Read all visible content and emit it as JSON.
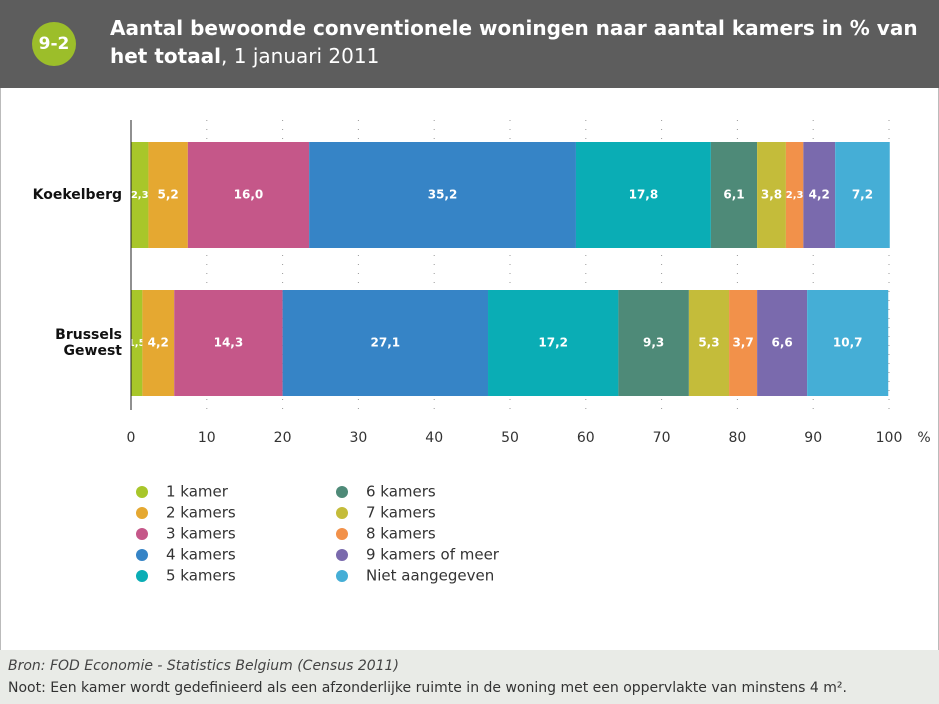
{
  "figure_number": "9-2",
  "chart_data": {
    "type": "stacked-barh",
    "title": "Aantal bewoonde conventionele woningen naar aantal kamers in % van het totaal",
    "subtitle": ", 1 januari 2011",
    "categories": [
      "Koekelberg",
      "Brussels Gewest"
    ],
    "xlabel": "%",
    "xlim": [
      0,
      100
    ],
    "xticks": [
      0,
      10,
      20,
      30,
      40,
      50,
      60,
      70,
      80,
      90,
      100
    ],
    "grid": true,
    "series": [
      {
        "name": "1 kamer",
        "color": "#a8c62a",
        "values": [
          2.3,
          1.5
        ],
        "value_labels": [
          "2,3",
          "1,5"
        ]
      },
      {
        "name": "2 kamers",
        "color": "#e5a831",
        "values": [
          5.2,
          4.2
        ],
        "value_labels": [
          "5,2",
          "4,2"
        ]
      },
      {
        "name": "3 kamers",
        "color": "#c55789",
        "values": [
          16.0,
          14.3
        ],
        "value_labels": [
          "16,0",
          "14,3"
        ]
      },
      {
        "name": "4 kamers",
        "color": "#3684c6",
        "values": [
          35.2,
          27.1
        ],
        "value_labels": [
          "35,2",
          "27,1"
        ]
      },
      {
        "name": "5 kamers",
        "color": "#0aadb5",
        "values": [
          17.8,
          17.2
        ],
        "value_labels": [
          "17,8",
          "17,2"
        ]
      },
      {
        "name": "6 kamers",
        "color": "#4e8a78",
        "values": [
          6.1,
          9.3
        ],
        "value_labels": [
          "6,1",
          "9,3"
        ]
      },
      {
        "name": "7 kamers",
        "color": "#c4bc3a",
        "values": [
          3.8,
          5.3
        ],
        "value_labels": [
          "3,8",
          "5,3"
        ]
      },
      {
        "name": "8 kamers",
        "color": "#f2914a",
        "values": [
          2.3,
          3.7
        ],
        "value_labels": [
          "2,3",
          "3,7"
        ]
      },
      {
        "name": "9 kamers of meer",
        "color": "#7a6aad",
        "values": [
          4.2,
          6.6
        ],
        "value_labels": [
          "4,2",
          "6,6"
        ]
      },
      {
        "name": "Niet aangegeven",
        "color": "#45aed6",
        "values": [
          7.2,
          10.7
        ],
        "value_labels": [
          "7,2",
          "10,7"
        ]
      }
    ]
  },
  "source": "Bron: FOD Economie - Statistics Belgium (Census 2011)",
  "note": "Noot: Een kamer wordt gedefinieerd als een afzonderlijke ruimte in de woning met een oppervlakte van minstens 4 m²."
}
